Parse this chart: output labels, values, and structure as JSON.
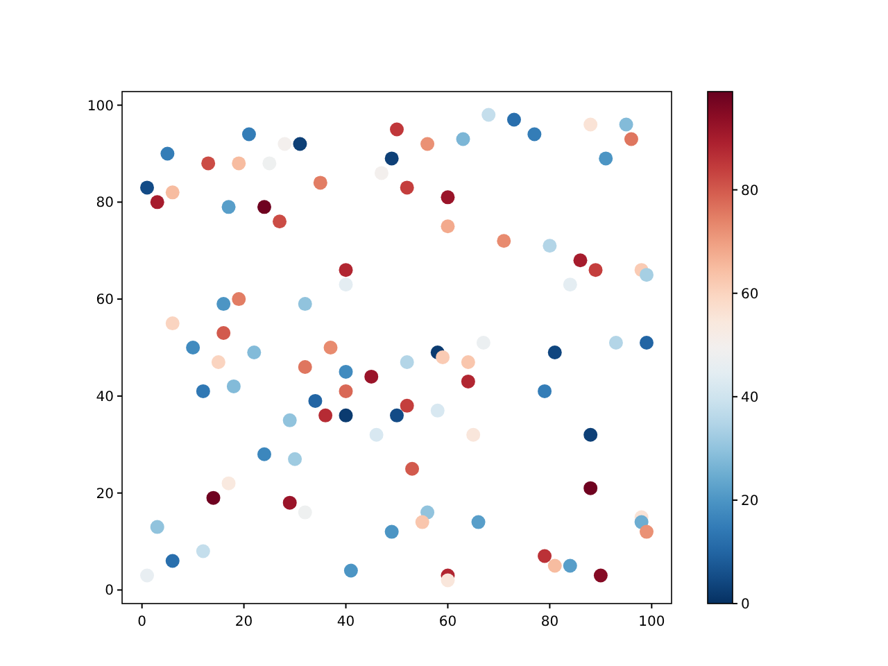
{
  "chart_data": {
    "type": "scatter",
    "marker": "circle",
    "grid": false,
    "x": [
      1,
      3,
      5,
      6,
      13,
      17,
      19,
      21,
      25,
      24,
      27,
      28,
      31,
      35,
      40,
      40,
      47,
      49,
      50,
      52,
      56,
      60,
      60,
      63,
      68,
      73,
      77,
      71,
      80,
      86,
      84,
      89,
      88,
      95,
      96,
      91,
      98,
      99,
      6,
      10,
      16,
      16,
      19,
      12,
      15,
      18,
      22,
      32,
      32,
      37,
      29,
      34,
      36,
      40,
      40,
      40,
      45,
      46,
      52,
      52,
      50,
      58,
      59,
      58,
      64,
      64,
      67,
      65,
      79,
      81,
      88,
      93,
      99,
      24,
      30,
      53,
      17,
      14,
      29,
      32,
      56,
      55,
      66,
      49,
      3,
      12,
      6,
      1,
      41,
      60,
      60,
      79,
      81,
      84,
      90,
      88,
      98,
      98,
      99
    ],
    "values": [
      83,
      80,
      90,
      82,
      88,
      79,
      88,
      94,
      88,
      79,
      76,
      92,
      92,
      84,
      66,
      63,
      86,
      89,
      95,
      83,
      92,
      81,
      75,
      93,
      98,
      97,
      94,
      72,
      71,
      68,
      63,
      66,
      96,
      96,
      93,
      89,
      66,
      65,
      55,
      50,
      59,
      53,
      60,
      41,
      47,
      42,
      49,
      59,
      46,
      50,
      35,
      39,
      36,
      45,
      41,
      36,
      44,
      32,
      47,
      38,
      36,
      49,
      48,
      37,
      47,
      43,
      51,
      32,
      41,
      49,
      32,
      51,
      51,
      28,
      27,
      25,
      22,
      19,
      18,
      16,
      16,
      14,
      14,
      12,
      13,
      8,
      6,
      3,
      4,
      3,
      2,
      7,
      5,
      5,
      3,
      21,
      15,
      14,
      12
    ],
    "cvalues": [
      5,
      90,
      15,
      65,
      82,
      22,
      65,
      15,
      48,
      98,
      82,
      50,
      3,
      75,
      88,
      45,
      50,
      3,
      85,
      84,
      72,
      92,
      68,
      27,
      38,
      12,
      15,
      73,
      35,
      90,
      45,
      84,
      56,
      28,
      76,
      20,
      62,
      33,
      60,
      18,
      20,
      80,
      75,
      14,
      60,
      28,
      28,
      30,
      76,
      73,
      30,
      10,
      87,
      18,
      78,
      2,
      92,
      42,
      35,
      84,
      5,
      2,
      62,
      42,
      63,
      88,
      47,
      55,
      15,
      4,
      3,
      35,
      10,
      17,
      32,
      80,
      54,
      98,
      92,
      48,
      30,
      63,
      22,
      20,
      30,
      38,
      12,
      46,
      20,
      88,
      55,
      86,
      65,
      22,
      95,
      98,
      56,
      25,
      72
    ],
    "xlim": [
      -3.9,
      103.9
    ],
    "ylim": [
      -2.8,
      102.8
    ],
    "xticks": [
      0,
      20,
      40,
      60,
      80,
      100
    ],
    "yticks": [
      0,
      20,
      40,
      60,
      80,
      100
    ],
    "clim": [
      0,
      99
    ],
    "cticks": [
      0,
      20,
      40,
      60,
      80
    ]
  }
}
